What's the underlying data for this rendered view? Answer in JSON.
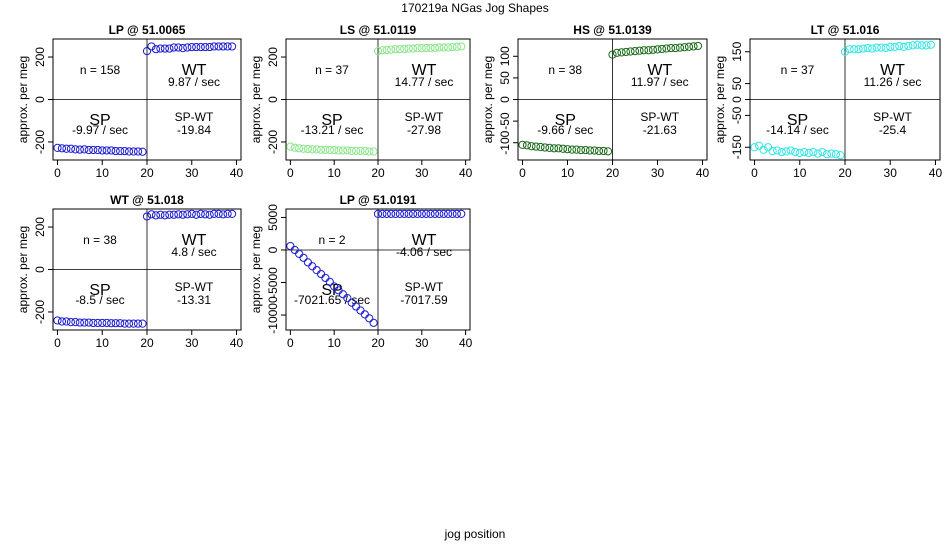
{
  "page": {
    "title": "170219a   NGas Jog Shapes",
    "xlabel": "jog position"
  },
  "chart_data": [
    {
      "type": "scatter",
      "title": "LP @ 51.0065",
      "ylabel": "approx. per meg",
      "color": "#1c1ccf",
      "xlim": [
        -1,
        41
      ],
      "ylim": [
        -285,
        285
      ],
      "xticks": [
        0,
        10,
        20,
        30,
        40
      ],
      "yticks": [
        -200,
        0,
        200
      ],
      "n_label": "n = 158",
      "wt_label": "WT",
      "wt_rate": "9.87 / sec",
      "sp_label": "SP",
      "sp_rate": "-9.97 / sec",
      "spwt_label": "SP-WT",
      "spwt_value": "-19.84",
      "sp_series": {
        "x": [
          0,
          1,
          2,
          3,
          4,
          5,
          6,
          7,
          8,
          9,
          10,
          11,
          12,
          13,
          14,
          15,
          16,
          17,
          18,
          19
        ],
        "y": [
          -228,
          -230,
          -232,
          -232,
          -235,
          -236,
          -235,
          -238,
          -238,
          -238,
          -240,
          -240,
          -240,
          -243,
          -243,
          -243,
          -245,
          -245,
          -245,
          -246
        ]
      },
      "wt_series": {
        "x": [
          20,
          21,
          22,
          23,
          24,
          25,
          26,
          27,
          28,
          29,
          30,
          31,
          32,
          33,
          34,
          35,
          36,
          37,
          38,
          39
        ],
        "y": [
          228,
          250,
          237,
          240,
          240,
          240,
          245,
          245,
          242,
          245,
          247,
          247,
          247,
          247,
          247,
          250,
          250,
          250,
          250,
          250
        ]
      }
    },
    {
      "type": "scatter",
      "title": "LS @ 51.0119",
      "ylabel": "approx. per meg",
      "color": "#8ae68a",
      "xlim": [
        -1,
        41
      ],
      "ylim": [
        -285,
        285
      ],
      "xticks": [
        0,
        10,
        20,
        30,
        40
      ],
      "yticks": [
        -200,
        0,
        200
      ],
      "n_label": "n = 37",
      "wt_label": "WT",
      "wt_rate": "14.77 / sec",
      "sp_label": "SP",
      "sp_rate": "-13.21 / sec",
      "spwt_label": "SP-WT",
      "spwt_value": "-27.98",
      "sp_series": {
        "x": [
          0,
          1,
          2,
          3,
          4,
          5,
          6,
          7,
          8,
          9,
          10,
          11,
          12,
          13,
          14,
          15,
          16,
          17,
          18,
          19
        ],
        "y": [
          -222,
          -227,
          -230,
          -232,
          -233,
          -235,
          -235,
          -237,
          -237,
          -238,
          -238,
          -240,
          -240,
          -240,
          -242,
          -242,
          -242,
          -243,
          -245,
          -245
        ]
      },
      "wt_series": {
        "x": [
          20,
          21,
          22,
          23,
          24,
          25,
          26,
          27,
          28,
          29,
          30,
          31,
          32,
          33,
          34,
          35,
          36,
          37,
          38,
          39
        ],
        "y": [
          228,
          232,
          233,
          235,
          237,
          237,
          238,
          240,
          240,
          242,
          242,
          243,
          243,
          243,
          245,
          245,
          245,
          247,
          248,
          250
        ]
      }
    },
    {
      "type": "scatter",
      "title": "HS @ 51.0139",
      "ylabel": "approx. per meg",
      "color": "#1b6b1b",
      "xlim": [
        -1,
        41
      ],
      "ylim": [
        -140,
        140
      ],
      "xticks": [
        0,
        10,
        20,
        30,
        40
      ],
      "yticks": [
        -100,
        -50,
        0,
        50,
        100
      ],
      "n_label": "n = 38",
      "wt_label": "WT",
      "wt_rate": "11.97 / sec",
      "sp_label": "SP",
      "sp_rate": "-9.66 / sec",
      "spwt_label": "SP-WT",
      "spwt_value": "-21.63",
      "sp_series": {
        "x": [
          0,
          1,
          2,
          3,
          4,
          5,
          6,
          7,
          8,
          9,
          10,
          11,
          12,
          13,
          14,
          15,
          16,
          17,
          18,
          19
        ],
        "y": [
          -105,
          -106,
          -108,
          -109,
          -110,
          -111,
          -112,
          -113,
          -113,
          -114,
          -115,
          -116,
          -116,
          -117,
          -117,
          -118,
          -118,
          -119,
          -119,
          -120
        ]
      },
      "wt_series": {
        "x": [
          20,
          21,
          22,
          23,
          24,
          25,
          26,
          27,
          28,
          29,
          30,
          31,
          32,
          33,
          34,
          35,
          36,
          37,
          38,
          39
        ],
        "y": [
          104,
          108,
          109,
          110,
          111,
          112,
          113,
          114,
          114,
          115,
          116,
          117,
          118,
          119,
          119,
          120,
          121,
          122,
          123,
          124
        ]
      }
    },
    {
      "type": "scatter",
      "title": "LT @ 51.016",
      "ylabel": "approx. per meg",
      "color": "#33e6e6",
      "xlim": [
        -1,
        41
      ],
      "ylim": [
        -190,
        190
      ],
      "xticks": [
        0,
        10,
        20,
        30,
        40
      ],
      "yticks": [
        -150,
        -50,
        0,
        50,
        150
      ],
      "n_label": "n = 37",
      "wt_label": "WT",
      "wt_rate": "11.26 / sec",
      "sp_label": "SP",
      "sp_rate": "-14.14 / sec",
      "spwt_label": "SP-WT",
      "spwt_value": "-25.4",
      "sp_series": {
        "x": [
          0,
          1,
          2,
          3,
          4,
          5,
          6,
          7,
          8,
          9,
          10,
          11,
          12,
          13,
          14,
          15,
          16,
          17,
          18,
          19
        ],
        "y": [
          -150,
          -145,
          -158,
          -150,
          -162,
          -160,
          -165,
          -163,
          -160,
          -165,
          -168,
          -165,
          -168,
          -165,
          -170,
          -165,
          -172,
          -170,
          -172,
          -175
        ]
      },
      "wt_series": {
        "x": [
          20,
          21,
          22,
          23,
          24,
          25,
          26,
          27,
          28,
          29,
          30,
          31,
          32,
          33,
          34,
          35,
          36,
          37,
          38,
          39
        ],
        "y": [
          150,
          158,
          158,
          158,
          160,
          162,
          160,
          163,
          163,
          162,
          165,
          165,
          168,
          165,
          168,
          170,
          172,
          170,
          170,
          172
        ]
      }
    },
    {
      "type": "scatter",
      "title": "WT @ 51.018",
      "ylabel": "approx. per meg",
      "color": "#1c1ccf",
      "xlim": [
        -1,
        41
      ],
      "ylim": [
        -285,
        285
      ],
      "xticks": [
        0,
        10,
        20,
        30,
        40
      ],
      "yticks": [
        -200,
        0,
        200
      ],
      "n_label": "n = 38",
      "wt_label": "WT",
      "wt_rate": "4.8 / sec",
      "sp_label": "SP",
      "sp_rate": "-8.5 / sec",
      "spwt_label": "SP-WT",
      "spwt_value": "-13.31",
      "sp_series": {
        "x": [
          0,
          1,
          2,
          3,
          4,
          5,
          6,
          7,
          8,
          9,
          10,
          11,
          12,
          13,
          14,
          15,
          16,
          17,
          18,
          19
        ],
        "y": [
          -240,
          -245,
          -245,
          -248,
          -248,
          -250,
          -250,
          -250,
          -252,
          -252,
          -252,
          -252,
          -253,
          -253,
          -253,
          -255,
          -255,
          -255,
          -255,
          -255
        ]
      },
      "wt_series": {
        "x": [
          20,
          21,
          22,
          23,
          24,
          25,
          26,
          27,
          28,
          29,
          30,
          31,
          32,
          33,
          34,
          35,
          36,
          37,
          38,
          39
        ],
        "y": [
          250,
          260,
          255,
          258,
          255,
          258,
          258,
          260,
          258,
          260,
          262,
          258,
          262,
          260,
          258,
          262,
          262,
          260,
          262,
          262
        ]
      }
    },
    {
      "type": "scatter",
      "title": "LP @ 51.0191",
      "ylabel": "approx. per meg",
      "color": "#1c1ccf",
      "xlim": [
        -1,
        41
      ],
      "ylim": [
        -12300,
        6300
      ],
      "xticks": [
        0,
        10,
        20,
        30,
        40
      ],
      "yticks": [
        -10000,
        -5000,
        0,
        5000
      ],
      "n_label": "n = 2",
      "wt_label": "WT",
      "wt_rate": "-4.06 / sec",
      "sp_label": "SP",
      "sp_rate": "-7021.65 / sec",
      "spwt_label": "SP-WT",
      "spwt_value": "-7017.59",
      "sp_series": {
        "x": [
          0,
          1,
          2,
          3,
          4,
          5,
          6,
          7,
          8,
          9,
          10,
          11,
          12,
          13,
          14,
          15,
          16,
          17,
          18,
          19
        ],
        "y": [
          600,
          0,
          -600,
          -1200,
          -1900,
          -2500,
          -3100,
          -3700,
          -4300,
          -4900,
          -5600,
          -6200,
          -6800,
          -7400,
          -8100,
          -8700,
          -9300,
          -9900,
          -10500,
          -11200
        ]
      },
      "wt_series": {
        "x": [
          20,
          21,
          22,
          23,
          24,
          25,
          26,
          27,
          28,
          29,
          30,
          31,
          32,
          33,
          34,
          35,
          36,
          37,
          38,
          39
        ],
        "y": [
          5550,
          5550,
          5550,
          5550,
          5550,
          5550,
          5550,
          5550,
          5550,
          5550,
          5550,
          5550,
          5550,
          5550,
          5550,
          5550,
          5550,
          5550,
          5550,
          5550
        ]
      }
    }
  ]
}
